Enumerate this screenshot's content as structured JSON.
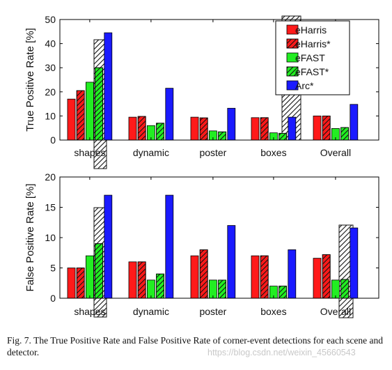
{
  "caption": "Fig. 7.   The True Positive Rate and False Positive Rate of corner-event detections for each scene and detector.",
  "watermark": "https://blog.csdn.net/weixin_45660543",
  "colors": {
    "red": "#ff1a1a",
    "green": "#22ee22",
    "blue": "#1a1aff",
    "hatch": "#111111"
  },
  "chart_data": [
    {
      "type": "bar",
      "title": "",
      "xlabel": "",
      "ylabel": "True Positive Rate [%]",
      "ylim": [
        0,
        50
      ],
      "yticks": [
        "0",
        "10",
        "20",
        "30",
        "40",
        "50"
      ],
      "categories": [
        "shapes",
        "dynamic",
        "poster",
        "boxes",
        "Overall"
      ],
      "legend": {
        "placement": "top-right",
        "entries": [
          "eHarris",
          "eHarris*",
          "eFAST",
          "eFAST*",
          "Arc*"
        ]
      },
      "series": [
        {
          "name": "eHarris",
          "color": "red",
          "hatched": false,
          "values": [
            17,
            9.5,
            9.5,
            9.3,
            10
          ]
        },
        {
          "name": "eHarris*",
          "color": "red",
          "hatched": true,
          "values": [
            20.5,
            9.8,
            9.2,
            9.3,
            10
          ]
        },
        {
          "name": "eFAST",
          "color": "green",
          "hatched": false,
          "values": [
            24,
            6,
            3.8,
            3,
            4.8
          ]
        },
        {
          "name": "eFAST*",
          "color": "green",
          "hatched": true,
          "values": [
            30,
            7,
            3.4,
            2.8,
            5.2
          ]
        },
        {
          "name": "Arc*",
          "color": "blue",
          "hatched": false,
          "values": [
            44.5,
            21.5,
            13.2,
            9.5,
            14.8
          ]
        }
      ],
      "grid": false
    },
    {
      "type": "bar",
      "title": "",
      "xlabel": "",
      "ylabel": "False Positive Rate  [%]",
      "ylim": [
        0,
        20
      ],
      "yticks": [
        "0",
        "5",
        "10",
        "15",
        "20"
      ],
      "categories": [
        "shapes",
        "dynamic",
        "poster",
        "boxes",
        "Overall"
      ],
      "series": [
        {
          "name": "eHarris",
          "color": "red",
          "hatched": false,
          "values": [
            5,
            6,
            7,
            7,
            6.6
          ]
        },
        {
          "name": "eHarris*",
          "color": "red",
          "hatched": true,
          "values": [
            5,
            6,
            8,
            7,
            7.2
          ]
        },
        {
          "name": "eFAST",
          "color": "green",
          "hatched": false,
          "values": [
            7,
            3,
            3,
            2,
            3
          ]
        },
        {
          "name": "eFAST*",
          "color": "green",
          "hatched": true,
          "values": [
            9,
            4,
            3,
            2,
            3.1
          ]
        },
        {
          "name": "Arc*",
          "color": "blue",
          "hatched": false,
          "values": [
            17,
            17,
            12,
            8,
            11.6
          ]
        }
      ],
      "grid": false
    }
  ]
}
